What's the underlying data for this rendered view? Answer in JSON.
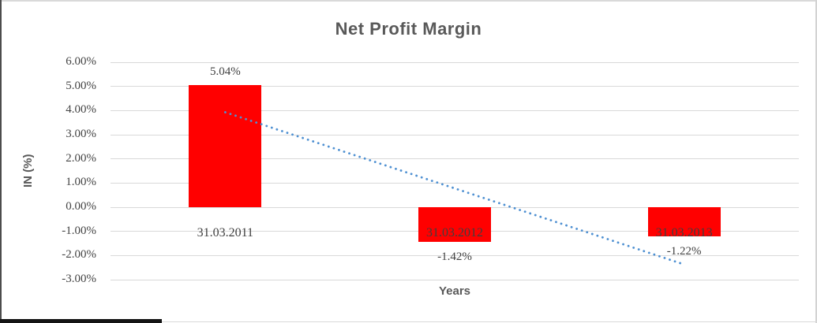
{
  "chart_data": {
    "type": "bar",
    "title": "Net Profit Margin",
    "xlabel": "Years",
    "ylabel": "IN (%)",
    "categories": [
      "31.03.2011",
      "31.03.2012",
      "31.03.2013"
    ],
    "values": [
      5.04,
      -1.42,
      -1.22
    ],
    "data_labels": [
      "5.04%",
      "-1.42%",
      "-1.22%"
    ],
    "ylim": [
      -3,
      6
    ],
    "ytick_step": 1,
    "ytick_labels": [
      "6.00%",
      "5.00%",
      "4.00%",
      "3.00%",
      "2.00%",
      "1.00%",
      "0.00%",
      "-1.00%",
      "-2.00%",
      "-3.00%"
    ],
    "grid": true,
    "legend": "none",
    "bar_color": "#ff0000",
    "label_color": "#404040",
    "axis_text_color": "#595959",
    "gridline_color": "#d9d9d9",
    "trendline": {
      "type": "linear",
      "style": "dotted",
      "color": "#4e90d2",
      "start_value": 3.93,
      "end_value": -2.37
    }
  }
}
